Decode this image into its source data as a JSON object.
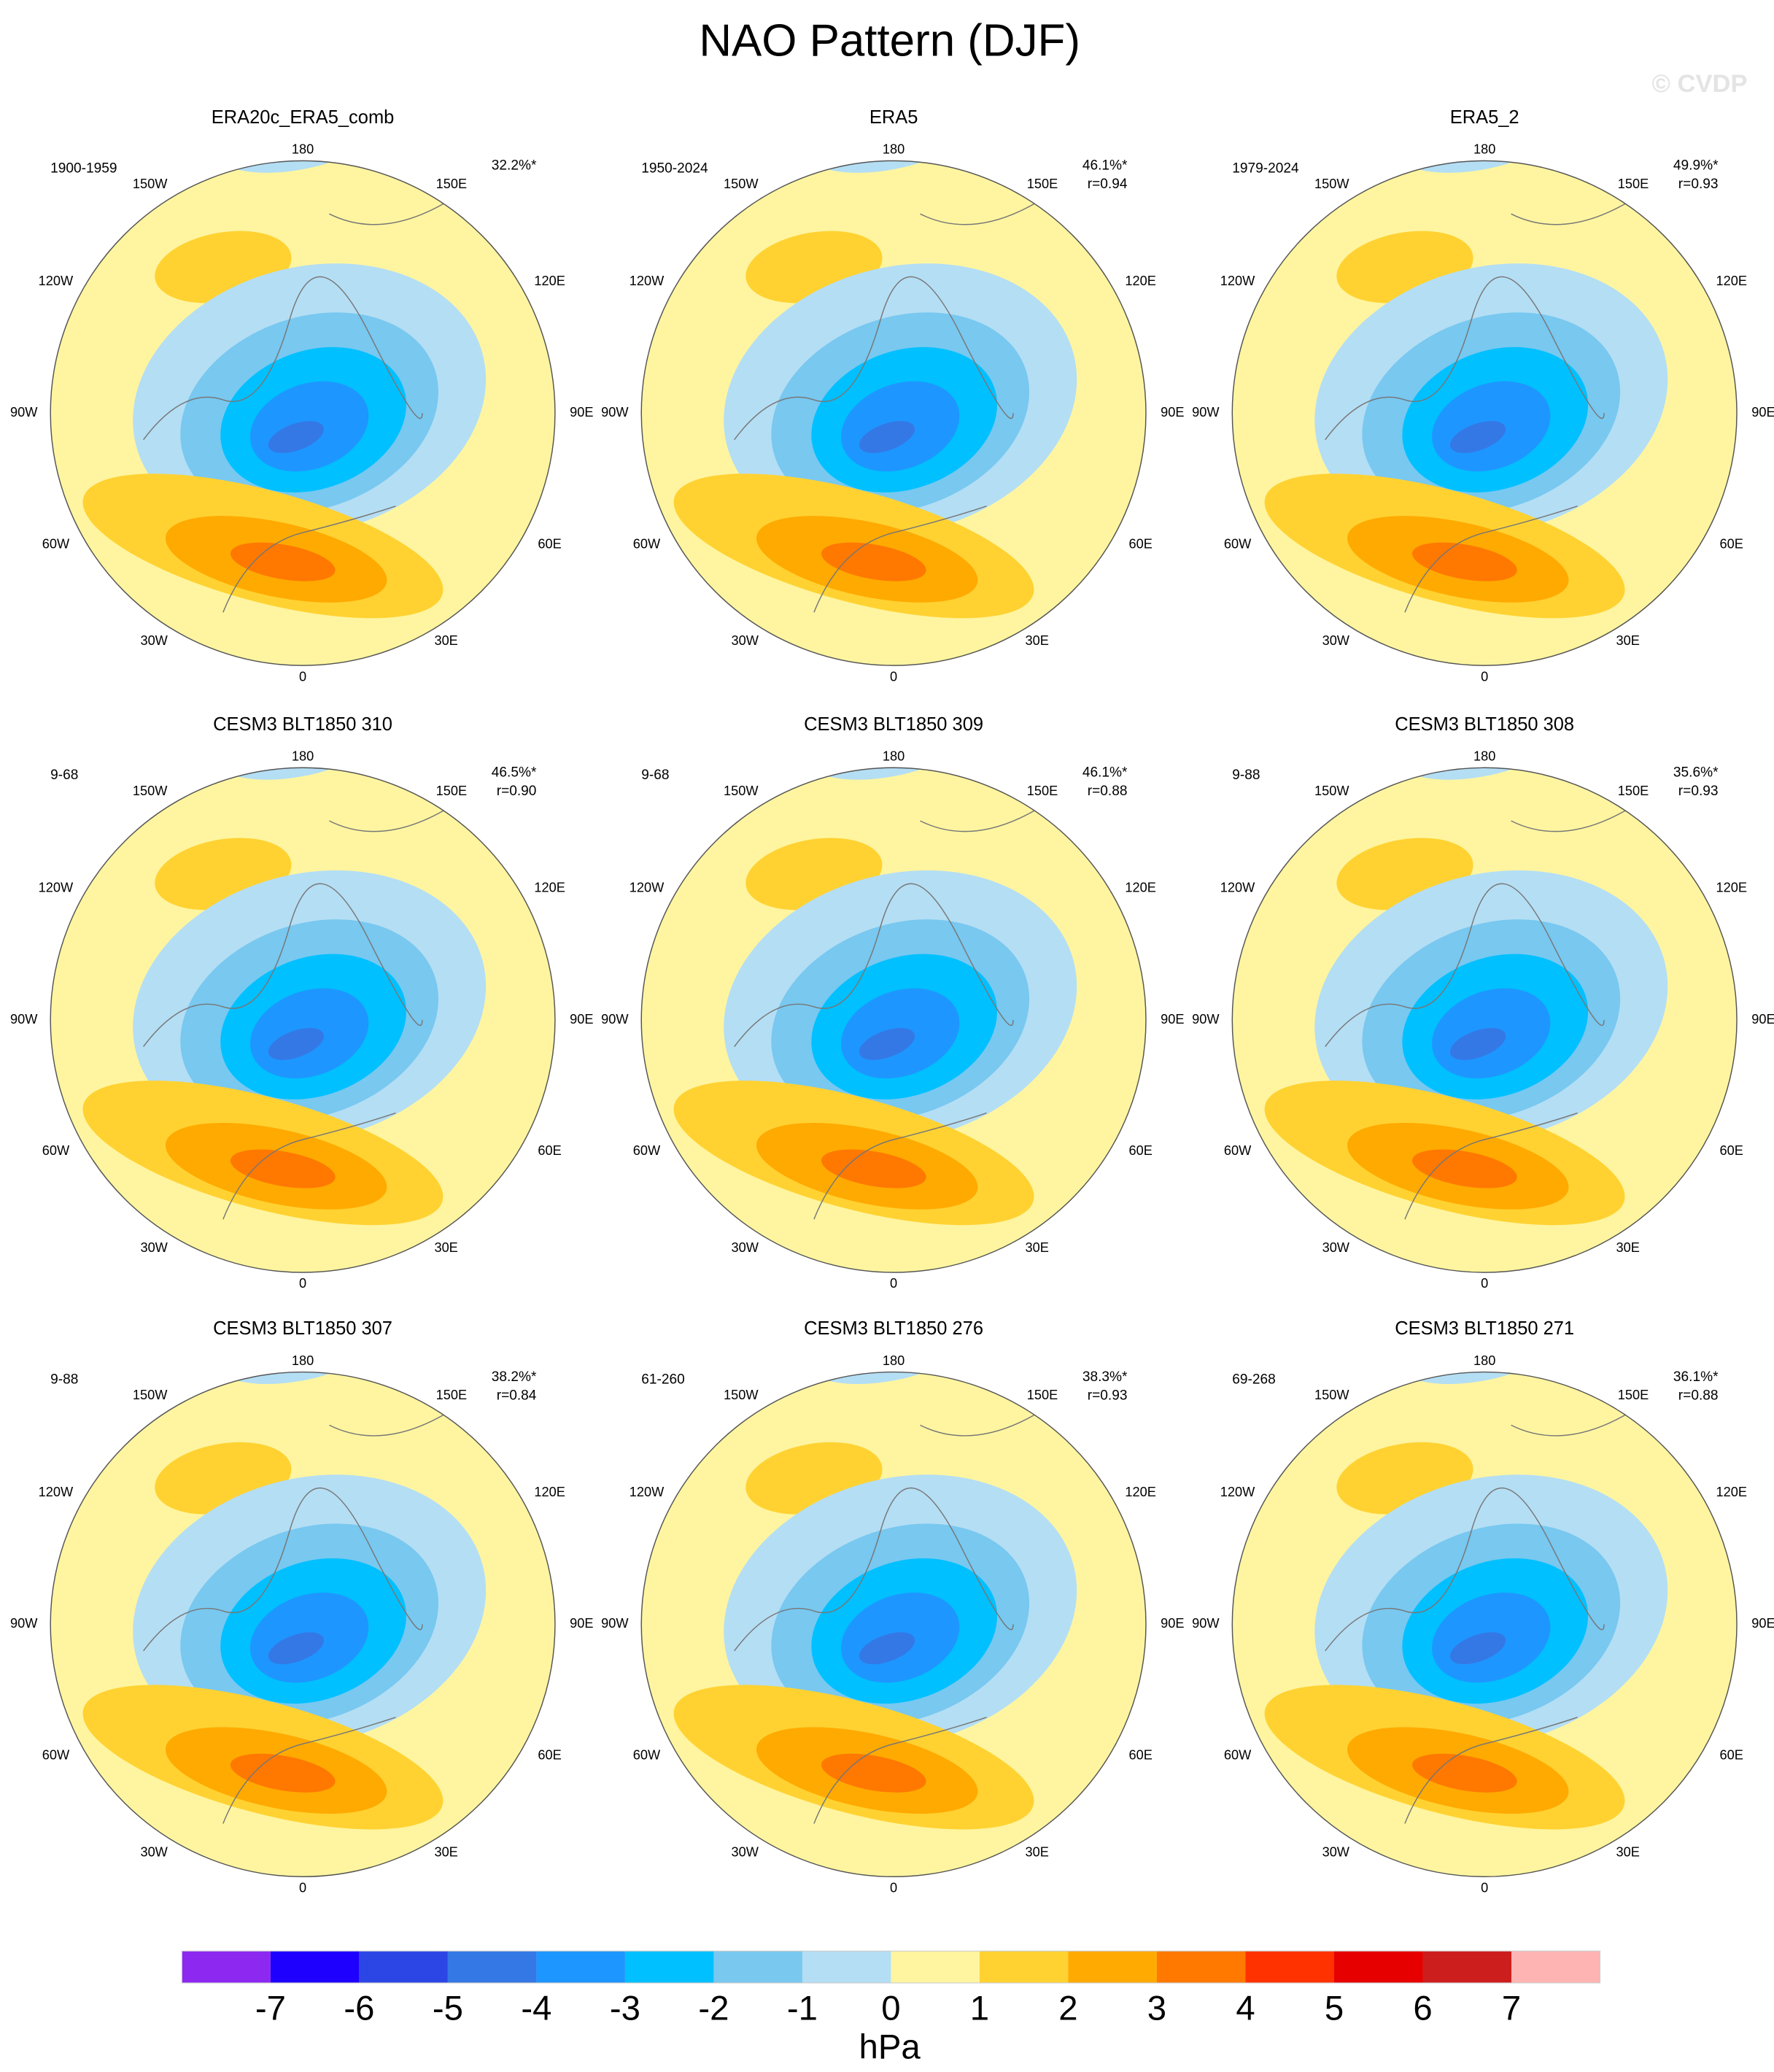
{
  "title": "NAO Pattern (DJF)",
  "watermark": "© CVDP",
  "panels": [
    {
      "title": "ERA20c_ERA5_comb",
      "years": "1900-1959",
      "pct": "32.2%*"
    },
    {
      "title": "ERA5",
      "years": "1950-2024",
      "pct": "46.1%*",
      "r": "r=0.94"
    },
    {
      "title": "ERA5_2",
      "years": "1979-2024",
      "pct": "49.9%*",
      "r": "r=0.93"
    },
    {
      "title": "CESM3 BLT1850 310",
      "years": "9-68",
      "pct": "46.5%*",
      "r": "r=0.90"
    },
    {
      "title": "CESM3 BLT1850 309",
      "years": "9-68",
      "pct": "46.1%*",
      "r": "r=0.88"
    },
    {
      "title": "CESM3 BLT1850 308",
      "years": "9-88",
      "pct": "35.6%*",
      "r": "r=0.93"
    },
    {
      "title": "CESM3 BLT1850 307",
      "years": "9-88",
      "pct": "38.2%*",
      "r": "r=0.84"
    },
    {
      "title": "CESM3 BLT1850 276",
      "years": "61-260",
      "pct": "38.3%*",
      "r": "r=0.93"
    },
    {
      "title": "CESM3 BLT1850 271",
      "years": "69-268",
      "pct": "36.1%*",
      "r": "r=0.88"
    }
  ],
  "lon_labels": [
    "180",
    "150E",
    "120E",
    "90E",
    "60E",
    "30E",
    "0",
    "30W",
    "60W",
    "90W",
    "120W",
    "150W"
  ],
  "colorbar": {
    "colors": [
      "#8c28f0",
      "#1e00ff",
      "#2c46e6",
      "#3478e6",
      "#1e96ff",
      "#00c0ff",
      "#78c8f0",
      "#b4def4",
      "#fff5a0",
      "#ffd232",
      "#ffaa00",
      "#ff7800",
      "#ff3200",
      "#e60000",
      "#cd1e1e",
      "#ffb4b4"
    ],
    "ticks": [
      -7,
      -6,
      -5,
      -4,
      -3,
      -2,
      -1,
      0,
      1,
      2,
      3,
      4,
      5,
      6,
      7
    ],
    "label": "hPa"
  }
}
